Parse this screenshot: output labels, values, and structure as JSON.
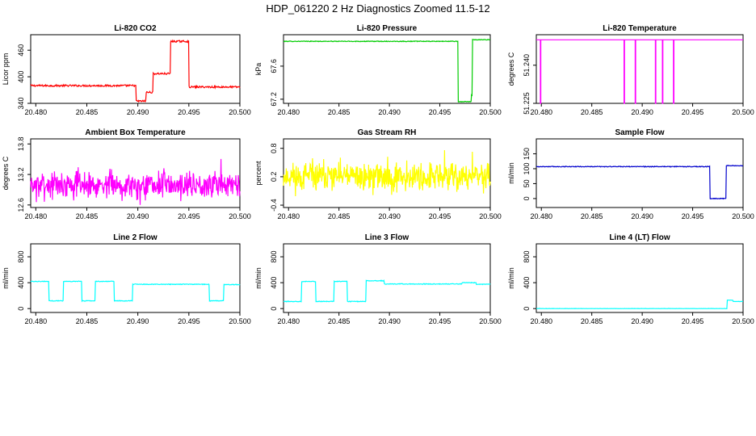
{
  "suptitle": "HDP_061220  2 Hz Diagnostics Zoomed 11.5-12",
  "chart_data": [
    {
      "type": "line",
      "title": "Li-820 CO2",
      "ylabel": "Licor ppm",
      "color": "#ff0000",
      "xlim": [
        20.4795,
        20.5
      ],
      "xticks": [
        "20.480",
        "20.485",
        "20.490",
        "20.495",
        "20.500"
      ],
      "ylim": [
        340,
        495
      ],
      "yticks": [
        340,
        400,
        460
      ],
      "series": [
        {
          "shape": "step",
          "noise": 2,
          "x": [
            20.4795,
            20.4898,
            20.4908,
            20.4915,
            20.4932,
            20.495,
            20.4982,
            20.5
          ],
          "y": [
            380,
            345,
            365,
            407,
            480,
            377,
            377,
            377
          ]
        }
      ]
    },
    {
      "type": "line",
      "title": "Li-820 Pressure",
      "ylabel": "kPa",
      "color": "#00cc00",
      "xlim": [
        20.4795,
        20.5
      ],
      "xticks": [
        "20.480",
        "20.485",
        "20.490",
        "20.495",
        "20.500"
      ],
      "ylim": [
        67.15,
        67.98
      ],
      "yticks": [
        "67.2",
        "67.6"
      ],
      "series": [
        {
          "shape": "step",
          "noise": 0.004,
          "x": [
            20.4795,
            20.4966,
            20.4968,
            20.4981,
            20.4982,
            20.5
          ],
          "y": [
            67.9,
            67.9,
            67.17,
            67.25,
            67.92,
            67.92
          ]
        }
      ]
    },
    {
      "type": "line",
      "title": "Li-820 Temperature",
      "ylabel": "degrees C",
      "color": "#ff00ff",
      "xlim": [
        20.4795,
        20.5
      ],
      "xticks": [
        "20.480",
        "20.485",
        "20.490",
        "20.495",
        "20.500"
      ],
      "ylim": [
        51.225,
        51.252
      ],
      "yticks": [
        "51.225",
        "51.240"
      ],
      "series": [
        {
          "shape": "baseline-with-drops",
          "baseline": 51.25,
          "drop_to": 51.225,
          "drops_x": [
            20.4799,
            20.4882,
            20.4893,
            20.4913,
            20.492,
            20.4931
          ]
        }
      ]
    },
    {
      "type": "line",
      "title": "Ambient Box Temperature",
      "ylabel": "degrees C",
      "color": "#ff00ff",
      "xlim": [
        20.4795,
        20.5
      ],
      "xticks": [
        "20.480",
        "20.485",
        "20.490",
        "20.495",
        "20.500"
      ],
      "ylim": [
        12.55,
        13.9
      ],
      "yticks": [
        "12.6",
        "13.2",
        "13.8"
      ],
      "series": [
        {
          "shape": "noise",
          "mean": 13.0,
          "spread": 0.38,
          "n": 520,
          "seed": 7
        }
      ]
    },
    {
      "type": "line",
      "title": "Gas Stream RH",
      "ylabel": "percent",
      "color": "#ffff00",
      "xlim": [
        20.4795,
        20.5
      ],
      "xticks": [
        "20.480",
        "20.485",
        "20.490",
        "20.495",
        "20.500"
      ],
      "ylim": [
        -0.45,
        1.0
      ],
      "yticks": [
        "-0.4",
        "0.2",
        "0.8"
      ],
      "series": [
        {
          "shape": "noise",
          "mean": 0.2,
          "spread": 0.45,
          "n": 520,
          "seed": 11
        }
      ]
    },
    {
      "type": "line",
      "title": "Sample Flow",
      "ylabel": "ml/min",
      "color": "#0000cc",
      "xlim": [
        20.4795,
        20.5
      ],
      "xticks": [
        "20.480",
        "20.485",
        "20.490",
        "20.495",
        "20.500"
      ],
      "ylim": [
        -30,
        200
      ],
      "yticks": [
        "0",
        "50",
        "100",
        "150"
      ],
      "series": [
        {
          "shape": "step",
          "noise": 1.2,
          "x": [
            20.4795,
            20.4966,
            20.4967,
            20.4982,
            20.4983,
            20.5
          ],
          "y": [
            107,
            107,
            0,
            0,
            110,
            110
          ]
        }
      ]
    },
    {
      "type": "line",
      "title": "Line 2 Flow",
      "ylabel": "ml/min",
      "color": "#00ffff",
      "xlim": [
        20.4795,
        20.5
      ],
      "xticks": [
        "20.480",
        "20.485",
        "20.490",
        "20.495",
        "20.500"
      ],
      "ylim": [
        -60,
        1000
      ],
      "yticks": [
        "0",
        "400",
        "800"
      ],
      "series": [
        {
          "shape": "step",
          "noise": 5,
          "x": [
            20.4795,
            20.4813,
            20.4827,
            20.4845,
            20.4858,
            20.4877,
            20.4895,
            20.497,
            20.4984,
            20.5
          ],
          "y": [
            420,
            120,
            420,
            120,
            420,
            120,
            375,
            120,
            370,
            370
          ]
        }
      ]
    },
    {
      "type": "line",
      "title": "Line 3 Flow",
      "ylabel": "ml/min",
      "color": "#00ffff",
      "xlim": [
        20.4795,
        20.5
      ],
      "xticks": [
        "20.480",
        "20.485",
        "20.490",
        "20.495",
        "20.500"
      ],
      "ylim": [
        -60,
        1000
      ],
      "yticks": [
        "0",
        "400",
        "800"
      ],
      "series": [
        {
          "shape": "step",
          "noise": 5,
          "x": [
            20.4795,
            20.4813,
            20.4827,
            20.4845,
            20.4858,
            20.4877,
            20.4895,
            20.4972,
            20.4986,
            20.5
          ],
          "y": [
            110,
            420,
            110,
            420,
            110,
            430,
            380,
            400,
            375,
            375
          ]
        }
      ]
    },
    {
      "type": "line",
      "title": "Line 4 (LT) Flow",
      "ylabel": "ml/min",
      "color": "#00ffff",
      "xlim": [
        20.4795,
        20.5
      ],
      "xticks": [
        "20.480",
        "20.485",
        "20.490",
        "20.495",
        "20.500"
      ],
      "ylim": [
        -60,
        1000
      ],
      "yticks": [
        "0",
        "400",
        "800"
      ],
      "series": [
        {
          "shape": "step",
          "noise": 2,
          "x": [
            20.4795,
            20.4982,
            20.4984,
            20.499,
            20.5
          ],
          "y": [
            0,
            0,
            130,
            110,
            110
          ]
        }
      ]
    }
  ]
}
